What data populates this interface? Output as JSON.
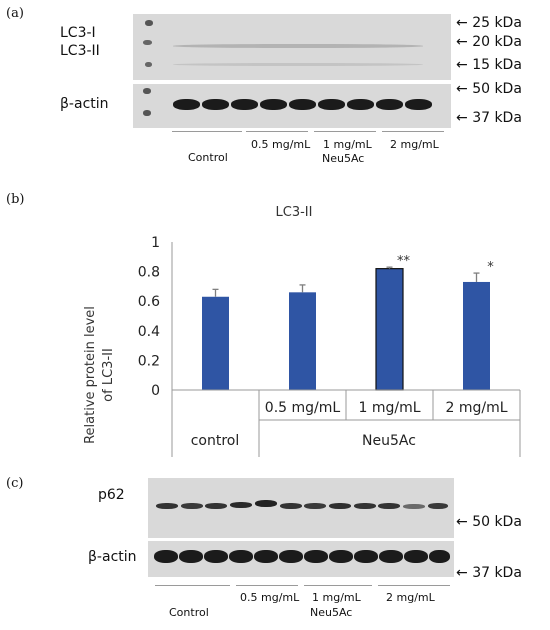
{
  "panels": {
    "a": "(a)",
    "b": "(b)",
    "c": "(c)"
  },
  "blot_a": {
    "band_labels": {
      "lc3_i": "LC3-I",
      "lc3_ii": "LC3-II",
      "actin": "β-actin"
    },
    "markers": [
      "25 kDa",
      "20 kDa",
      "15 kDa",
      "50 kDa",
      "37 kDa"
    ],
    "groups": [
      "Control",
      "0.5 mg/mL",
      "1 mg/mL",
      "2 mg/mL"
    ],
    "treatment": "Neu5Ac"
  },
  "blot_c": {
    "band_labels": {
      "p62": "p62",
      "actin": "β-actin"
    },
    "markers": [
      "50 kDa",
      "37 kDa"
    ],
    "groups": [
      "Control",
      "0.5 mg/mL",
      "1 mg/mL",
      "2 mg/mL"
    ],
    "treatment": "Neu5Ac"
  },
  "chart_data": {
    "type": "bar",
    "title": "LC3-II",
    "ylabel": "Relative protein level of LC3-II",
    "ylabel_lines": [
      "Relative protein level",
      "of LC3-II"
    ],
    "categories": [
      "control",
      "0.5 mg/mL",
      "1 mg/mL",
      "2 mg/mL"
    ],
    "group_labels": {
      "control": "control",
      "treatment": "Neu5Ac"
    },
    "values": [
      0.63,
      0.66,
      0.82,
      0.73
    ],
    "errors": [
      0.05,
      0.05,
      0.01,
      0.06
    ],
    "significance": [
      "",
      "",
      "**",
      "*"
    ],
    "ylim": [
      0,
      1
    ],
    "yticks": [
      0,
      0.2,
      0.4,
      0.6,
      0.8,
      1
    ],
    "ytick_labels": [
      "0",
      "0.2",
      "0.4",
      "0.6",
      "0.8",
      "1"
    ],
    "bar_color": "#2f55a4",
    "error_color": "#7f7f7f",
    "grid": false
  }
}
